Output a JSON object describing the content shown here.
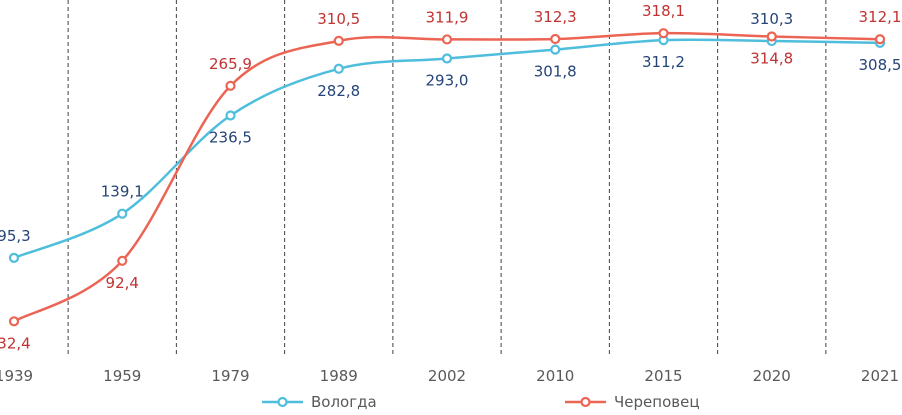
{
  "chart_data": {
    "type": "line",
    "title": "",
    "xlabel": "",
    "ylabel": "",
    "categories": [
      "1939",
      "1959",
      "1979",
      "1989",
      "2002",
      "2010",
      "2015",
      "2020",
      "2021"
    ],
    "series": [
      {
        "name": "Вологда",
        "slug": "vologda",
        "color": "#4FBEDC",
        "label_color": "#264478",
        "values": [
          95.3,
          139.1,
          236.5,
          282.8,
          293.0,
          301.8,
          311.2,
          310.3,
          308.5
        ],
        "point_labels": [
          "95,3",
          "139,1",
          "236,5",
          "282,8",
          "293,0",
          "301,8",
          "311,2",
          "310,3",
          "308,5"
        ],
        "label_side": [
          "above",
          "above",
          "below",
          "below",
          "below",
          "below",
          "below",
          "above",
          "below"
        ]
      },
      {
        "name": "Череповец",
        "slug": "cherepovets",
        "color": "#EC6453",
        "label_color": "#C13232",
        "values": [
          32.4,
          92.4,
          265.9,
          310.5,
          311.9,
          312.3,
          318.1,
          314.8,
          312.1
        ],
        "point_labels": [
          "32,4",
          "92,4",
          "265,9",
          "310,5",
          "311,9",
          "312,3",
          "318,1",
          "314,8",
          "312,1"
        ],
        "label_side": [
          "below",
          "below",
          "above",
          "above",
          "above",
          "above",
          "above",
          "below",
          "above"
        ]
      }
    ],
    "ylim": [
      0,
      351
    ],
    "grid": "vertical dashed lines between categories",
    "grid_color": "#404040",
    "axis_text_color": "#595959",
    "legend_position": "bottom",
    "legend_text_color": "#595959",
    "marker": "open-circle",
    "line_style": "smooth"
  }
}
